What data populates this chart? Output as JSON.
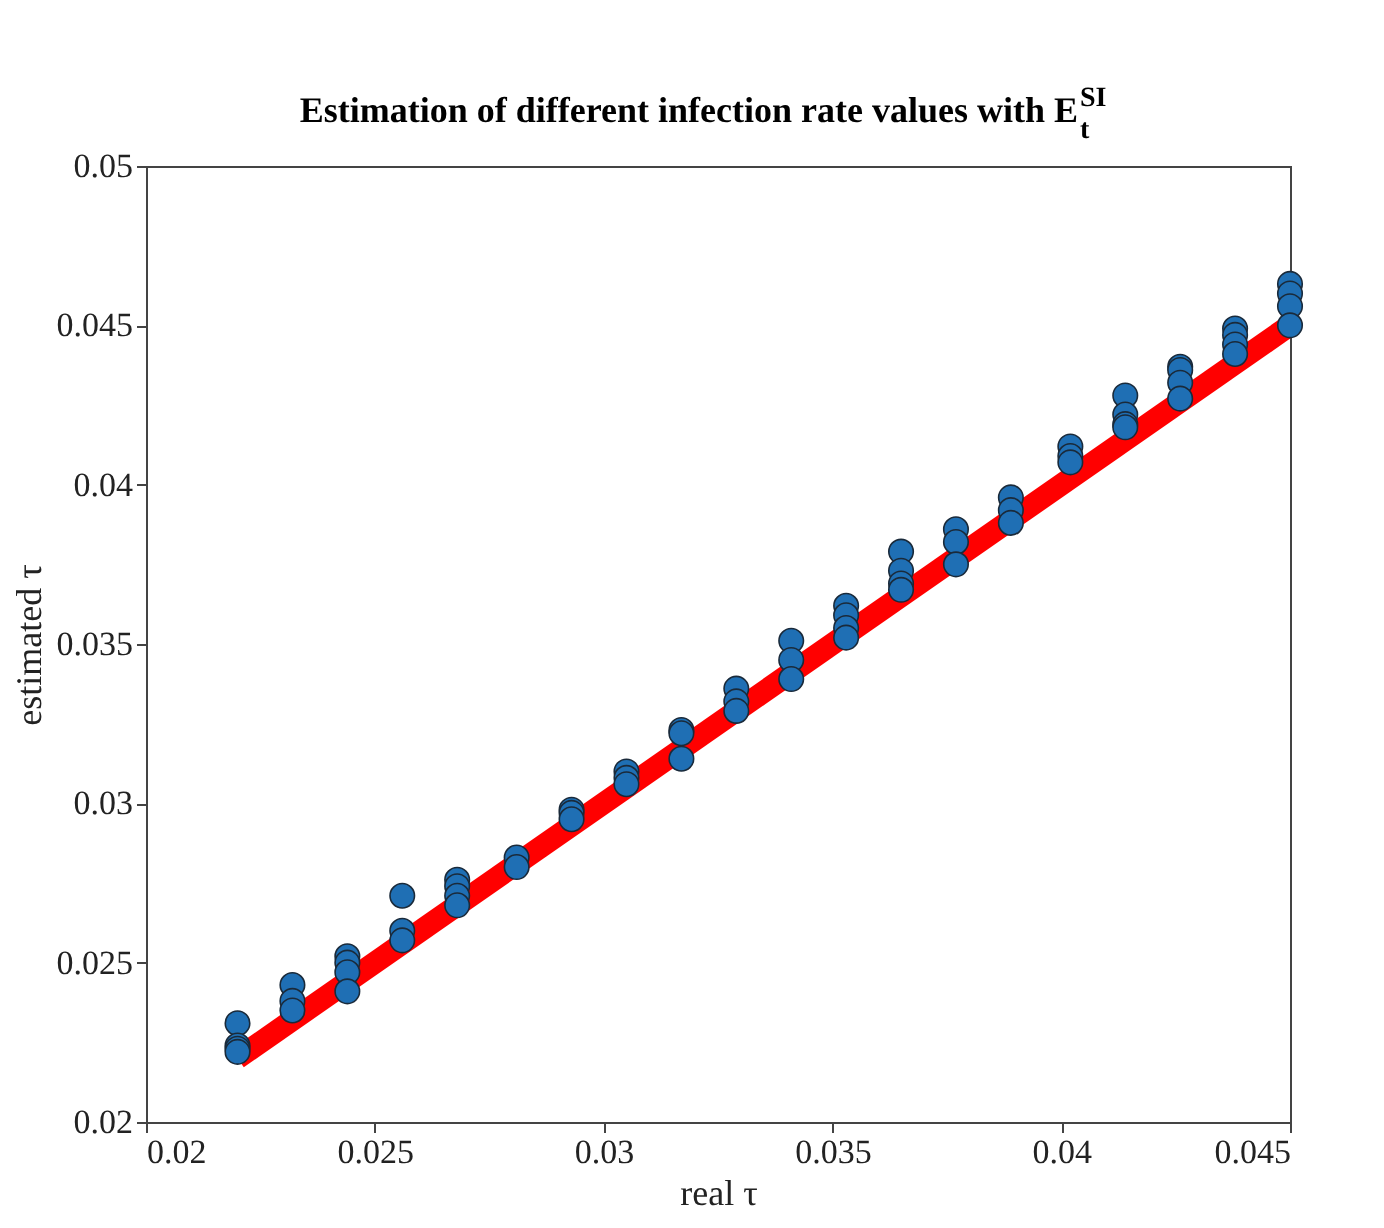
{
  "chart_data": {
    "type": "scatter",
    "title": "Estimation of different infection rate values with E$^{SI}$$_{t}$",
    "xlabel": "real τ",
    "ylabel": "estimated τ",
    "xlim": [
      0.02,
      0.045
    ],
    "xticks": [
      0.02,
      0.025,
      0.03,
      0.035,
      0.04,
      0.045
    ],
    "ylim": [
      0.02,
      0.05
    ],
    "yticks": [
      0.02,
      0.025,
      0.03,
      0.035,
      0.04,
      0.045,
      0.05
    ],
    "grid": false,
    "marker": "circle",
    "series": [
      {
        "type": "line",
        "color": "#ff0000",
        "line_style": "solid",
        "marker": "none",
        "x": [
          0.022,
          0.045
        ],
        "values": [
          0.022,
          0.045
        ]
      },
      {
        "color": "#1f6fb4",
        "x": [
          0.022,
          0.022,
          0.022,
          0.022,
          0.0232,
          0.0232,
          0.0232,
          0.0244,
          0.0244,
          0.0244,
          0.0244,
          0.0256,
          0.0256,
          0.0256,
          0.0268,
          0.0268,
          0.0268,
          0.0268,
          0.0281,
          0.0281,
          0.0293,
          0.0293,
          0.0293,
          0.0305,
          0.0305,
          0.0305,
          0.0317,
          0.0317,
          0.0317,
          0.0329,
          0.0329,
          0.0329,
          0.0341,
          0.0341,
          0.0341,
          0.0353,
          0.0353,
          0.0353,
          0.0353,
          0.0365,
          0.0365,
          0.0365,
          0.0365,
          0.0377,
          0.0377,
          0.0377,
          0.0389,
          0.0389,
          0.0389,
          0.0402,
          0.0402,
          0.0402,
          0.0414,
          0.0414,
          0.0414,
          0.0414,
          0.0426,
          0.0426,
          0.0426,
          0.0426,
          0.0438,
          0.0438,
          0.0438,
          0.0438,
          0.045,
          0.045,
          0.045,
          0.045
        ],
        "values": [
          0.0231,
          0.0224,
          0.0223,
          0.0222,
          0.0243,
          0.0238,
          0.0235,
          0.0252,
          0.025,
          0.0247,
          0.0241,
          0.0271,
          0.026,
          0.0257,
          0.0276,
          0.0274,
          0.0271,
          0.0268,
          0.0283,
          0.028,
          0.0298,
          0.0297,
          0.0295,
          0.031,
          0.0308,
          0.0306,
          0.0323,
          0.0322,
          0.0314,
          0.0336,
          0.0332,
          0.0329,
          0.0351,
          0.0345,
          0.0339,
          0.0362,
          0.0359,
          0.0355,
          0.0352,
          0.0379,
          0.0373,
          0.0369,
          0.0367,
          0.0386,
          0.0382,
          0.0375,
          0.0396,
          0.0392,
          0.0388,
          0.0412,
          0.0409,
          0.0407,
          0.0428,
          0.0422,
          0.0419,
          0.0418,
          0.0437,
          0.0436,
          0.0432,
          0.0427,
          0.0449,
          0.0447,
          0.0444,
          0.0441,
          0.0463,
          0.046,
          0.0456,
          0.045
        ]
      }
    ]
  }
}
